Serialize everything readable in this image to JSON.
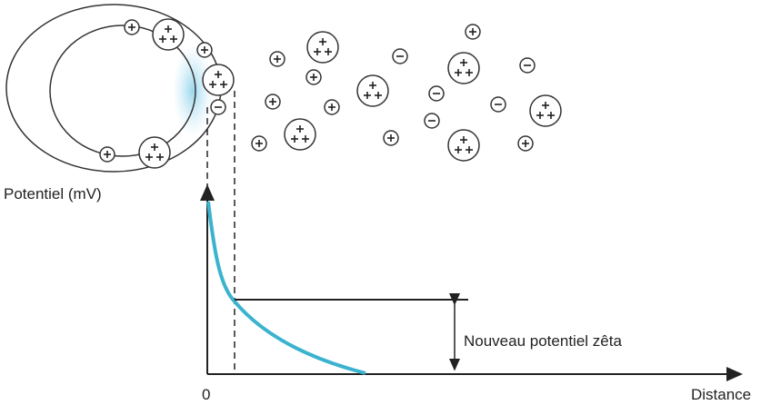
{
  "y_axis_label": "Potentiel (mV)",
  "x_axis_label": "Distance",
  "origin_label": "0",
  "annotation": "Nouveau potentiel zêta"
}
